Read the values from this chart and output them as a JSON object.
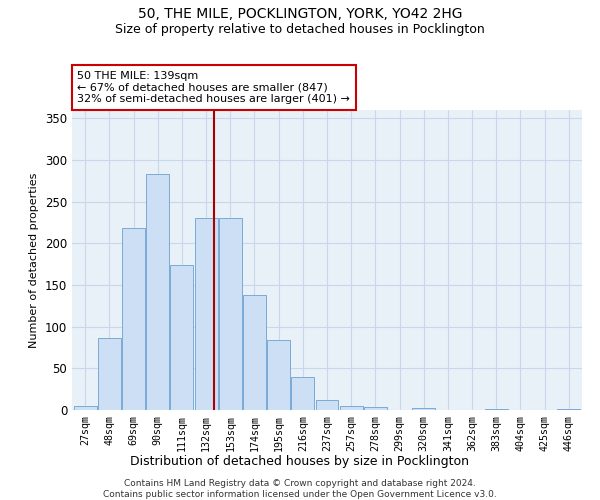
{
  "title1": "50, THE MILE, POCKLINGTON, YORK, YO42 2HG",
  "title2": "Size of property relative to detached houses in Pocklington",
  "xlabel": "Distribution of detached houses by size in Pocklington",
  "ylabel": "Number of detached properties",
  "categories": [
    "27sqm",
    "48sqm",
    "69sqm",
    "90sqm",
    "111sqm",
    "132sqm",
    "153sqm",
    "174sqm",
    "195sqm",
    "216sqm",
    "237sqm",
    "257sqm",
    "278sqm",
    "299sqm",
    "320sqm",
    "341sqm",
    "362sqm",
    "383sqm",
    "404sqm",
    "425sqm",
    "446sqm"
  ],
  "values": [
    5,
    86,
    219,
    283,
    174,
    230,
    230,
    138,
    84,
    40,
    12,
    5,
    4,
    0,
    3,
    0,
    0,
    1,
    0,
    0,
    1
  ],
  "bar_color": "#ccdff5",
  "bar_edge_color": "#7aaad4",
  "grid_color": "#c8d8ea",
  "background_color": "#e8f0f8",
  "vline_color": "#aa0000",
  "annotation_text": "50 THE MILE: 139sqm\n← 67% of detached houses are smaller (847)\n32% of semi-detached houses are larger (401) →",
  "annotation_box_color": "white",
  "annotation_box_edge": "#cc0000",
  "ylim": [
    0,
    360
  ],
  "yticks": [
    0,
    50,
    100,
    150,
    200,
    250,
    300,
    350
  ],
  "footnote1": "Contains HM Land Registry data © Crown copyright and database right 2024.",
  "footnote2": "Contains public sector information licensed under the Open Government Licence v3.0."
}
